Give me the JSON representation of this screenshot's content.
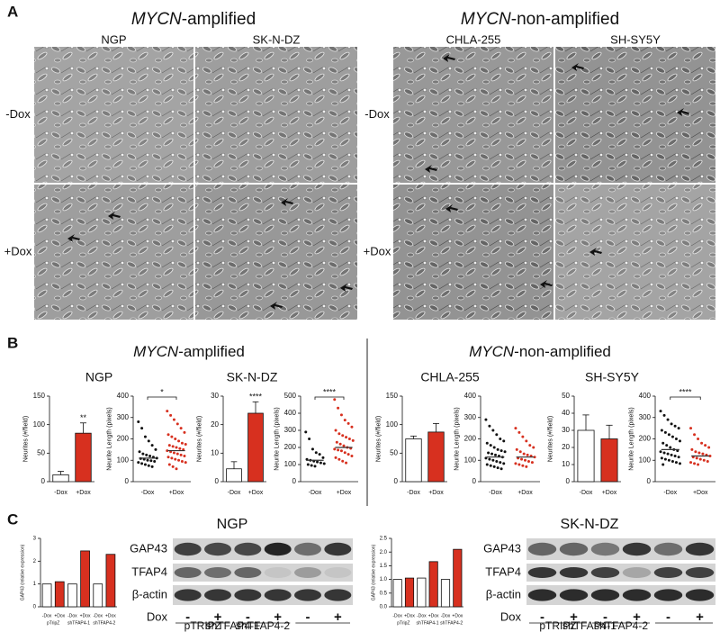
{
  "panel_labels": [
    "A",
    "B",
    "C"
  ],
  "panel_a": {
    "groups": [
      {
        "title": {
          "italic": "MYCN",
          "rest": "-amplified"
        },
        "cell_lines": [
          "NGP",
          "SK-N-DZ"
        ]
      },
      {
        "title": {
          "italic": "MYCN",
          "rest": "-non-amplified"
        },
        "cell_lines": [
          "CHLA-255",
          "SH-SY5Y"
        ]
      }
    ],
    "row_labels": [
      "-Dox",
      "+Dox"
    ]
  },
  "panel_b": {
    "groups": [
      {
        "title": {
          "italic": "MYCN",
          "rest": "-amplified"
        }
      },
      {
        "title": {
          "italic": "MYCN",
          "rest": "-non-amplified"
        }
      }
    ],
    "cell_lines": [
      "NGP",
      "SK-N-DZ",
      "CHLA-255",
      "SH-SY5Y"
    ]
  },
  "chart_data": [
    {
      "type": "bar",
      "ylabel": "Neurites (#/field)",
      "categories": [
        "-Dox",
        "+Dox"
      ],
      "values": [
        12,
        85
      ],
      "errors": [
        6,
        18
      ],
      "colors": [
        "#ffffff",
        "#d7301f"
      ],
      "ylim": [
        0,
        150
      ],
      "yticks": [
        0,
        50,
        100,
        150
      ],
      "significance": "**"
    },
    {
      "type": "dotplot",
      "ylabel": "Neurite Length (pixels)",
      "categories": [
        "-Dox",
        "+Dox"
      ],
      "colors": [
        "#111111",
        "#d7301f"
      ],
      "means": [
        110,
        145
      ],
      "ylim": [
        0,
        400
      ],
      "yticks": [
        0,
        100,
        200,
        300,
        400
      ],
      "significance": "*",
      "values": [
        [
          280,
          250,
          210,
          190,
          170,
          150,
          140,
          130,
          125,
          120,
          115,
          110,
          108,
          105,
          100,
          98,
          95,
          90,
          85,
          80,
          75,
          70
        ],
        [
          330,
          310,
          290,
          270,
          250,
          230,
          220,
          210,
          200,
          190,
          180,
          175,
          170,
          165,
          160,
          155,
          150,
          145,
          140,
          135,
          130,
          125,
          120,
          115,
          110,
          105,
          100,
          95,
          90,
          80,
          70,
          60
        ]
      ]
    },
    {
      "type": "bar",
      "ylabel": "Neurites (#/field)",
      "categories": [
        "-Dox",
        "+Dox"
      ],
      "values": [
        4.5,
        24
      ],
      "errors": [
        2.5,
        4
      ],
      "colors": [
        "#ffffff",
        "#d7301f"
      ],
      "ylim": [
        0,
        30
      ],
      "yticks": [
        0,
        10,
        20,
        30
      ],
      "significance": "****"
    },
    {
      "type": "dotplot",
      "ylabel": "Neurite Length (pixels)",
      "categories": [
        "-Dox",
        "+Dox"
      ],
      "colors": [
        "#111111",
        "#d7301f"
      ],
      "means": [
        125,
        200
      ],
      "ylim": [
        0,
        500
      ],
      "yticks": [
        0,
        100,
        200,
        300,
        400,
        500
      ],
      "significance": "****",
      "values": [
        [
          290,
          250,
          190,
          170,
          160,
          140,
          130,
          125,
          120,
          115,
          110,
          105,
          100,
          95,
          90
        ],
        [
          480,
          430,
          390,
          360,
          340,
          320,
          300,
          280,
          270,
          260,
          250,
          240,
          230,
          220,
          210,
          200,
          195,
          190,
          185,
          180,
          170,
          160,
          150,
          140,
          130,
          120,
          110
        ]
      ]
    },
    {
      "type": "bar",
      "ylabel": "Neurites (#/field)",
      "categories": [
        "-Dox",
        "+Dox"
      ],
      "values": [
        75,
        87
      ],
      "errors": [
        5,
        15
      ],
      "colors": [
        "#ffffff",
        "#d7301f"
      ],
      "ylim": [
        0,
        150
      ],
      "yticks": [
        0,
        50,
        100,
        150
      ]
    },
    {
      "type": "dotplot",
      "ylabel": "Neurite Length (pixels)",
      "categories": [
        "-Dox",
        "+Dox"
      ],
      "colors": [
        "#111111",
        "#d7301f"
      ],
      "means": [
        115,
        115
      ],
      "ylim": [
        0,
        400
      ],
      "yticks": [
        0,
        100,
        200,
        300,
        400
      ],
      "values": [
        [
          290,
          260,
          240,
          220,
          200,
          190,
          180,
          170,
          160,
          150,
          145,
          140,
          135,
          130,
          125,
          120,
          115,
          110,
          105,
          100,
          95,
          90,
          85,
          80,
          75,
          70,
          65,
          60
        ],
        [
          250,
          230,
          210,
          190,
          170,
          160,
          150,
          140,
          130,
          125,
          120,
          115,
          110,
          105,
          100,
          95,
          90,
          85,
          80,
          75,
          70
        ]
      ]
    },
    {
      "type": "bar",
      "ylabel": "Neurites (#/field)",
      "categories": [
        "-Dox",
        "+Dox"
      ],
      "values": [
        30,
        25
      ],
      "errors": [
        9,
        8
      ],
      "colors": [
        "#ffffff",
        "#d7301f"
      ],
      "ylim": [
        0,
        50
      ],
      "yticks": [
        0,
        10,
        20,
        30,
        40,
        50
      ]
    },
    {
      "type": "dotplot",
      "ylabel": "Neurite Length (pixels)",
      "categories": [
        "-Dox",
        "+Dox"
      ],
      "colors": [
        "#111111",
        "#d7301f"
      ],
      "means": [
        150,
        120
      ],
      "ylim": [
        0,
        400
      ],
      "yticks": [
        0,
        100,
        200,
        300,
        400
      ],
      "significance": "****",
      "values": [
        [
          330,
          310,
          290,
          270,
          260,
          250,
          240,
          230,
          220,
          210,
          200,
          190,
          180,
          170,
          160,
          150,
          145,
          140,
          135,
          130,
          125,
          120,
          115,
          110,
          105,
          100,
          95,
          90,
          85,
          80
        ],
        [
          250,
          220,
          200,
          180,
          170,
          160,
          150,
          140,
          135,
          130,
          125,
          120,
          115,
          110,
          105,
          100,
          95,
          90,
          85,
          80
        ]
      ]
    },
    {
      "type": "bar",
      "ylabel": "GAP43 (relative expression)",
      "categories": [
        "-Dox",
        "+Dox",
        "-Dox",
        "+Dox",
        "-Dox",
        "+Dox"
      ],
      "groups": [
        "pTripZ",
        "shTFAP4-1",
        "shTFAP4-2"
      ],
      "values": [
        1.0,
        1.1,
        1.0,
        2.45,
        1.0,
        2.3
      ],
      "colors": [
        "#ffffff",
        "#d7301f",
        "#ffffff",
        "#d7301f",
        "#ffffff",
        "#d7301f"
      ],
      "ylim": [
        0,
        3
      ],
      "yticks": [
        0,
        1,
        2,
        3
      ]
    },
    {
      "type": "bar",
      "ylabel": "GAP43 (relative expression)",
      "categories": [
        "-Dox",
        "+Dox",
        "-Dox",
        "+Dox",
        "-Dox",
        "+Dox"
      ],
      "groups": [
        "pTripZ",
        "shTFAP4-1",
        "shTFAP4-2"
      ],
      "values": [
        1.0,
        1.05,
        1.05,
        1.65,
        1.0,
        2.1
      ],
      "colors": [
        "#ffffff",
        "#d7301f",
        "#ffffff",
        "#d7301f",
        "#ffffff",
        "#d7301f"
      ],
      "ylim": [
        0,
        2.5
      ],
      "yticks": [
        {
          "value": 0,
          "label": "0.0"
        },
        {
          "value": 0.5,
          "label": "0.5"
        },
        {
          "value": 1,
          "label": "1.0"
        },
        {
          "value": 1.5,
          "label": "1.5"
        },
        {
          "value": 2,
          "label": "2.0"
        },
        {
          "value": 2.5,
          "label": "2.5"
        }
      ]
    }
  ],
  "panel_c": {
    "blots": [
      {
        "title": "NGP",
        "rows": [
          "GAP43",
          "TFAP4",
          "β-actin"
        ],
        "dox_label": "Dox",
        "dox": [
          "-",
          "+",
          "-",
          "+",
          "-",
          "+"
        ],
        "groups": [
          "pTRIPZ",
          "shTFAP4-1",
          "shTFAP4-2"
        ]
      },
      {
        "title": "SK-N-DZ",
        "rows": [
          "GAP43",
          "TFAP4",
          "β-actin"
        ],
        "dox_label": "Dox",
        "dox": [
          "-",
          "+",
          "-",
          "+",
          "-",
          "+"
        ],
        "groups": [
          "pTRIPZ",
          "shTFAP4-1",
          "shTFAP4-2"
        ]
      }
    ]
  }
}
